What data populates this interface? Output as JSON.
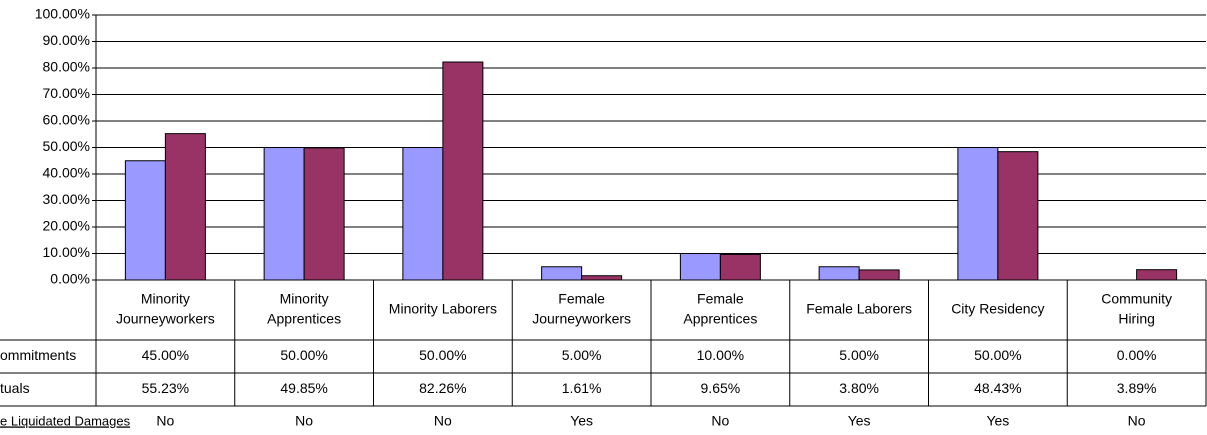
{
  "chart_data": {
    "type": "bar",
    "categories": [
      [
        "Minority",
        "Journeyworkers"
      ],
      [
        "Minority",
        "Apprentices"
      ],
      [
        "Minority Laborers"
      ],
      [
        "Female",
        "Journeyworkers"
      ],
      [
        "Female",
        "Apprentices"
      ],
      [
        "Female Laborers"
      ],
      [
        "City Residency"
      ],
      [
        "Community",
        "Hiring"
      ]
    ],
    "series": [
      {
        "name": "ommitments",
        "color": "#9999ff",
        "values": [
          45,
          50,
          50,
          5,
          10,
          5,
          50,
          0
        ],
        "value_labels": [
          "45.00%",
          "50.00%",
          "50.00%",
          "5.00%",
          "10.00%",
          "5.00%",
          "50.00%",
          "0.00%"
        ]
      },
      {
        "name": "tuals",
        "color": "#993366",
        "values": [
          55.23,
          49.85,
          82.26,
          1.61,
          9.65,
          3.8,
          48.43,
          3.89
        ],
        "value_labels": [
          "55.23%",
          "49.85%",
          "82.26%",
          "1.61%",
          "9.65%",
          "3.80%",
          "48.43%",
          "3.89%"
        ]
      }
    ],
    "extra_row": {
      "label": "e Liquidated Damages",
      "values": [
        "No",
        "No",
        "No",
        "Yes",
        "No",
        "Yes",
        "Yes",
        "No"
      ]
    },
    "ylim": [
      0,
      100
    ],
    "yticks": [
      {
        "value": 0,
        "label": "0.00%"
      },
      {
        "value": 10,
        "label": "10.00%"
      },
      {
        "value": 20,
        "label": "20.00%"
      },
      {
        "value": 30,
        "label": "30.00%"
      },
      {
        "value": 40,
        "label": "40.00%"
      },
      {
        "value": 50,
        "label": "50.00%"
      },
      {
        "value": 60,
        "label": "60.00%"
      },
      {
        "value": 70,
        "label": "70.00%"
      },
      {
        "value": 80,
        "label": "80.00%"
      },
      {
        "value": 90,
        "label": "90.00%"
      },
      {
        "value": 100,
        "label": "100.00%"
      }
    ],
    "grid": true
  }
}
